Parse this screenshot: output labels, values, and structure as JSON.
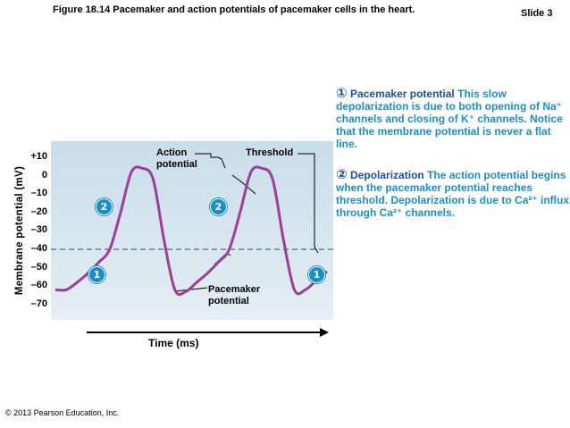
{
  "header": {
    "figure_title": "Figure 18.14  Pacemaker and action potentials of pacemaker cells in the heart.",
    "slide": "Slide 3"
  },
  "footer": {
    "copyright": "© 2013 Pearson Education, Inc."
  },
  "chart_data": {
    "type": "line",
    "ylabel": "Membrane potential (mV)",
    "xlabel": "Time (ms)",
    "yticks": [
      "+10",
      "0",
      "–10",
      "–20",
      "–30",
      "–40",
      "–50",
      "–60",
      "–70"
    ],
    "ylim": [
      -75,
      15
    ],
    "threshold_mv": -40,
    "x": [
      0,
      1,
      2,
      3,
      4,
      5,
      6,
      7,
      8,
      9,
      10,
      11,
      12,
      13,
      14,
      15,
      16,
      17,
      18,
      19,
      20,
      21,
      22,
      23,
      24,
      25
    ],
    "series": [
      {
        "values": [
          -62,
          -62,
          -58,
          -53,
          -47,
          -40,
          -20,
          2,
          4,
          -2,
          -35,
          -62,
          -63,
          -58,
          -53,
          -47,
          -40,
          -20,
          2,
          4,
          -2,
          -35,
          -62,
          -62,
          -57,
          -52
        ]
      }
    ],
    "annotations": {
      "action_potential": "Action\npotential",
      "threshold": "Threshold",
      "pacemaker_potential": "Pacemaker\npotential"
    },
    "markers": [
      "1",
      "2"
    ],
    "colors": {
      "trace": "#9b3f96",
      "threshold": "#6a7c92",
      "panel": "#d3e4ee",
      "marker": "#1a8fc7"
    }
  },
  "legend": [
    {
      "num": "①",
      "title": "Pacemaker potential",
      "text": "This slow depolarization is due to both opening of Na⁺ channels and closing of K⁺ channels. Notice that the membrane potential is never a flat line."
    },
    {
      "num": "②",
      "title": "Depolarization",
      "text": "The action potential begins when the pacemaker potential reaches threshold. Depolarization is due to Ca²⁺ influx through Ca²⁺ channels."
    }
  ]
}
